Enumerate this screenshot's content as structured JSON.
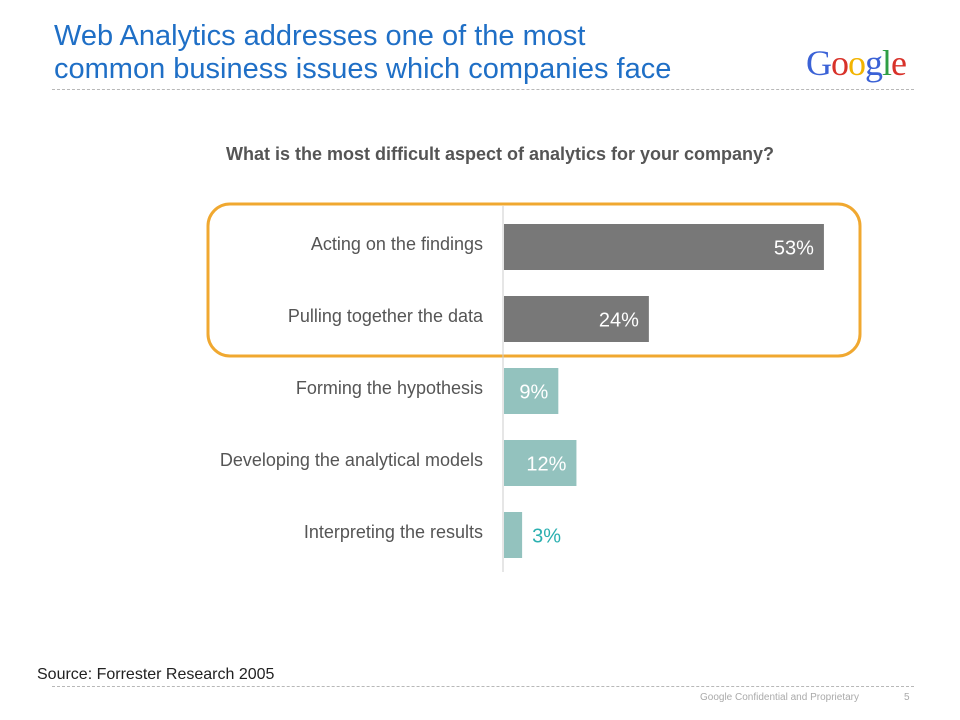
{
  "slide": {
    "title_lines": [
      "Web Analytics addresses one of the most",
      "common business issues which companies face"
    ],
    "logo": {
      "letters": [
        "G",
        "o",
        "o",
        "g",
        "l",
        "e"
      ],
      "colors": [
        "#3b62d6",
        "#d8322a",
        "#f2b400",
        "#3b62d6",
        "#2f9e44",
        "#d8322a"
      ]
    },
    "source": "Source: Forrester Research 2005",
    "confidential": "Google Confidential and Proprietary",
    "page_number": "5"
  },
  "chart_data": {
    "type": "bar",
    "orientation": "horizontal",
    "title": "What is the most difficult aspect of analytics for your company?",
    "categories": [
      "Acting on the findings",
      "Pulling together the data",
      "Forming the hypothesis",
      "Developing the analytical models",
      "Interpreting the results"
    ],
    "values": [
      53,
      24,
      9,
      12,
      3
    ],
    "labels": [
      "53%",
      "24%",
      "9%",
      "12%",
      "3%"
    ],
    "unit": "%",
    "highlighted_categories": [
      0,
      1
    ],
    "colors": {
      "highlighted_bar": "#787878",
      "other_bar": "#93c2be",
      "highlight_outline": "#f0a830",
      "label_inside": "#ffffff",
      "label_outside": "#2ab0b0",
      "category_text": "#555555",
      "axis_line": "#cccccc"
    },
    "xlim": [
      0,
      55
    ],
    "grid": false,
    "legend": "none"
  }
}
